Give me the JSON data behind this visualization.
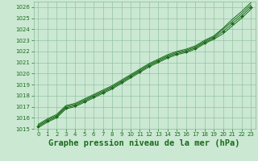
{
  "background_color": "#cbe8d3",
  "grid_color": "#88bb99",
  "line_color": "#1a6b1a",
  "marker_color": "#1a6b1a",
  "title": "Graphe pression niveau de la mer (hPa)",
  "title_fontsize": 7.5,
  "xlim": [
    -0.5,
    23.5
  ],
  "ylim": [
    1015,
    1026.5
  ],
  "yticks": [
    1015,
    1016,
    1017,
    1018,
    1019,
    1020,
    1021,
    1022,
    1023,
    1024,
    1025,
    1026
  ],
  "xticks": [
    0,
    1,
    2,
    3,
    4,
    5,
    6,
    7,
    8,
    9,
    10,
    11,
    12,
    13,
    14,
    15,
    16,
    17,
    18,
    19,
    20,
    21,
    22,
    23
  ],
  "series": [
    [
      1015.2,
      1015.7,
      1016.1,
      1016.9,
      1017.1,
      1017.5,
      1017.9,
      1018.3,
      1018.7,
      1019.2,
      1019.7,
      1020.2,
      1020.7,
      1021.1,
      1021.5,
      1021.8,
      1022.0,
      1022.3,
      1022.8,
      1023.2,
      1023.8,
      1024.5,
      1025.2,
      1026.0
    ],
    [
      1015.3,
      1015.8,
      1016.2,
      1017.0,
      1017.2,
      1017.6,
      1018.0,
      1018.4,
      1018.8,
      1019.3,
      1019.8,
      1020.3,
      1020.8,
      1021.2,
      1021.6,
      1021.9,
      1022.1,
      1022.4,
      1022.9,
      1023.3,
      1024.0,
      1024.7,
      1025.4,
      1026.2
    ],
    [
      1015.1,
      1015.6,
      1016.0,
      1016.8,
      1017.0,
      1017.4,
      1017.8,
      1018.2,
      1018.6,
      1019.1,
      1019.6,
      1020.1,
      1020.6,
      1021.0,
      1021.4,
      1021.7,
      1021.9,
      1022.2,
      1022.7,
      1023.1,
      1023.6,
      1024.3,
      1025.0,
      1025.8
    ],
    [
      1015.4,
      1015.9,
      1016.3,
      1017.1,
      1017.3,
      1017.7,
      1018.1,
      1018.5,
      1018.9,
      1019.4,
      1019.9,
      1020.4,
      1020.9,
      1021.3,
      1021.7,
      1022.0,
      1022.2,
      1022.5,
      1023.0,
      1023.4,
      1024.1,
      1024.9,
      1025.6,
      1026.4
    ]
  ]
}
